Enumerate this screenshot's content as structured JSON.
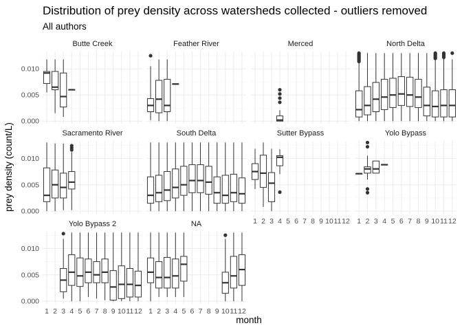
{
  "chart_data": {
    "type": "boxplot",
    "facet": "watershed",
    "title": "Distribution of prey density across watersheds collected - outliers removed",
    "subtitle": "All authors",
    "xlabel": "month",
    "ylabel": "prey density (count/L)",
    "x_ticks": [
      "1",
      "2",
      "3",
      "4",
      "5",
      "6",
      "7",
      "8",
      "9",
      "10",
      "11",
      "12"
    ],
    "y_ticks": [
      "0.000",
      "0.005",
      "0.010"
    ],
    "ylim": [
      -0.0005,
      0.0133
    ],
    "grid": true,
    "panels": [
      {
        "name": "Butte Creek",
        "boxes": [
          {
            "month": 1,
            "min": 0.0055,
            "q1": 0.0072,
            "median": 0.0092,
            "q3": 0.0095,
            "max": 0.0118,
            "outliers": []
          },
          {
            "month": 2,
            "min": 0.0015,
            "q1": 0.006,
            "median": 0.0065,
            "q3": 0.0095,
            "max": 0.0118,
            "outliers": []
          },
          {
            "month": 3,
            "min": 0.0008,
            "q1": 0.0027,
            "median": 0.0047,
            "q3": 0.0092,
            "max": 0.0118,
            "outliers": []
          },
          {
            "month": 4,
            "min": 0.006,
            "q1": 0.006,
            "median": 0.006,
            "q3": 0.006,
            "max": 0.006,
            "outliers": []
          }
        ]
      },
      {
        "name": "Feather River",
        "boxes": [
          {
            "month": 1,
            "min": 0.0002,
            "q1": 0.0018,
            "median": 0.003,
            "q3": 0.0043,
            "max": 0.0105,
            "outliers": [
              0.0125
            ]
          },
          {
            "month": 2,
            "min": 0.0,
            "q1": 0.0016,
            "median": 0.0042,
            "q3": 0.0078,
            "max": 0.0118,
            "outliers": []
          },
          {
            "month": 3,
            "min": 0.0,
            "q1": 0.0018,
            "median": 0.003,
            "q3": 0.008,
            "max": 0.0118,
            "outliers": []
          },
          {
            "month": 4,
            "min": 0.0071,
            "q1": 0.0071,
            "median": 0.0071,
            "q3": 0.0071,
            "max": 0.0071,
            "outliers": []
          }
        ]
      },
      {
        "name": "Merced",
        "boxes": [
          {
            "month": 4,
            "min": 0.0,
            "q1": 0.0,
            "median": 0.0002,
            "q3": 0.001,
            "max": 0.0021,
            "outliers": [
              0.0036,
              0.0044,
              0.0052,
              0.006
            ]
          }
        ]
      },
      {
        "name": "North Delta",
        "boxes": [
          {
            "month": 1,
            "min": 0.0,
            "q1": 0.0008,
            "median": 0.0022,
            "q3": 0.0058,
            "max": 0.0112,
            "outliers": [
              0.0114,
              0.0116,
              0.0118,
              0.012,
              0.0122,
              0.0124,
              0.0126,
              0.0128,
              0.013
            ]
          },
          {
            "month": 2,
            "min": 0.0,
            "q1": 0.0012,
            "median": 0.003,
            "q3": 0.0066,
            "max": 0.013,
            "outliers": []
          },
          {
            "month": 3,
            "min": 0.0,
            "q1": 0.0018,
            "median": 0.0042,
            "q3": 0.0074,
            "max": 0.013,
            "outliers": []
          },
          {
            "month": 4,
            "min": 0.0,
            "q1": 0.0022,
            "median": 0.0046,
            "q3": 0.008,
            "max": 0.013,
            "outliers": []
          },
          {
            "month": 5,
            "min": 0.0,
            "q1": 0.0026,
            "median": 0.005,
            "q3": 0.0082,
            "max": 0.013,
            "outliers": []
          },
          {
            "month": 6,
            "min": 0.0,
            "q1": 0.003,
            "median": 0.0052,
            "q3": 0.0085,
            "max": 0.013,
            "outliers": []
          },
          {
            "month": 7,
            "min": 0.0,
            "q1": 0.0028,
            "median": 0.005,
            "q3": 0.0084,
            "max": 0.013,
            "outliers": []
          },
          {
            "month": 8,
            "min": 0.0,
            "q1": 0.0026,
            "median": 0.0046,
            "q3": 0.008,
            "max": 0.013,
            "outliers": []
          },
          {
            "month": 9,
            "min": 0.0,
            "q1": 0.001,
            "median": 0.003,
            "q3": 0.0065,
            "max": 0.013,
            "outliers": []
          },
          {
            "month": 10,
            "min": 0.0,
            "q1": 0.0008,
            "median": 0.0028,
            "q3": 0.0058,
            "max": 0.0118,
            "outliers": [
              0.012,
              0.0122,
              0.0124,
              0.0126,
              0.0128,
              0.013
            ]
          },
          {
            "month": 11,
            "min": 0.0,
            "q1": 0.0008,
            "median": 0.003,
            "q3": 0.006,
            "max": 0.012,
            "outliers": [
              0.0122,
              0.0124,
              0.0126,
              0.0128,
              0.013
            ]
          },
          {
            "month": 12,
            "min": 0.0,
            "q1": 0.0008,
            "median": 0.003,
            "q3": 0.006,
            "max": 0.0118,
            "outliers": [
              0.013
            ]
          }
        ]
      },
      {
        "name": "Sacramento River",
        "boxes": [
          {
            "month": 1,
            "min": 0.0,
            "q1": 0.0018,
            "median": 0.003,
            "q3": 0.0082,
            "max": 0.013,
            "outliers": []
          },
          {
            "month": 2,
            "min": 0.0,
            "q1": 0.0025,
            "median": 0.005,
            "q3": 0.0078,
            "max": 0.0128,
            "outliers": []
          },
          {
            "month": 3,
            "min": 0.0002,
            "q1": 0.0025,
            "median": 0.0045,
            "q3": 0.0072,
            "max": 0.0128,
            "outliers": []
          },
          {
            "month": 4,
            "min": 0.0002,
            "q1": 0.0042,
            "median": 0.0055,
            "q3": 0.0075,
            "max": 0.0112,
            "outliers": [
              0.0116,
              0.012,
              0.0124
            ]
          }
        ]
      },
      {
        "name": "South Delta",
        "boxes": [
          {
            "month": 1,
            "min": 0.0,
            "q1": 0.0015,
            "median": 0.003,
            "q3": 0.0065,
            "max": 0.013,
            "outliers": []
          },
          {
            "month": 2,
            "min": 0.0,
            "q1": 0.0018,
            "median": 0.0035,
            "q3": 0.0068,
            "max": 0.013,
            "outliers": []
          },
          {
            "month": 3,
            "min": 0.0,
            "q1": 0.002,
            "median": 0.004,
            "q3": 0.0075,
            "max": 0.013,
            "outliers": []
          },
          {
            "month": 4,
            "min": 0.0,
            "q1": 0.0025,
            "median": 0.0045,
            "q3": 0.008,
            "max": 0.013,
            "outliers": []
          },
          {
            "month": 5,
            "min": 0.0,
            "q1": 0.003,
            "median": 0.005,
            "q3": 0.0085,
            "max": 0.013,
            "outliers": []
          },
          {
            "month": 6,
            "min": 0.0,
            "q1": 0.0035,
            "median": 0.0058,
            "q3": 0.0088,
            "max": 0.013,
            "outliers": []
          },
          {
            "month": 7,
            "min": 0.0,
            "q1": 0.0035,
            "median": 0.0058,
            "q3": 0.0088,
            "max": 0.013,
            "outliers": []
          },
          {
            "month": 8,
            "min": 0.0,
            "q1": 0.0032,
            "median": 0.0055,
            "q3": 0.0085,
            "max": 0.013,
            "outliers": []
          },
          {
            "month": 9,
            "min": 0.0,
            "q1": 0.0015,
            "median": 0.0035,
            "q3": 0.0065,
            "max": 0.013,
            "outliers": []
          },
          {
            "month": 10,
            "min": 0.0,
            "q1": 0.0015,
            "median": 0.003,
            "q3": 0.0068,
            "max": 0.013,
            "outliers": []
          },
          {
            "month": 11,
            "min": 0.0,
            "q1": 0.0018,
            "median": 0.0035,
            "q3": 0.007,
            "max": 0.013,
            "outliers": []
          },
          {
            "month": 12,
            "min": 0.0,
            "q1": 0.0015,
            "median": 0.0033,
            "q3": 0.0063,
            "max": 0.013,
            "outliers": []
          }
        ]
      },
      {
        "name": "Sutter Bypass",
        "boxes": [
          {
            "month": 1,
            "min": 0.0042,
            "q1": 0.006,
            "median": 0.0075,
            "q3": 0.009,
            "max": 0.0118,
            "outliers": []
          },
          {
            "month": 2,
            "min": 0.0008,
            "q1": 0.0045,
            "median": 0.0072,
            "q3": 0.0106,
            "max": 0.013,
            "outliers": []
          },
          {
            "month": 3,
            "min": 0.0,
            "q1": 0.0018,
            "median": 0.0053,
            "q3": 0.0073,
            "max": 0.0118,
            "outliers": []
          },
          {
            "month": 4,
            "min": 0.007,
            "q1": 0.0086,
            "median": 0.0102,
            "q3": 0.0105,
            "max": 0.0117,
            "outliers": [
              0.0036
            ]
          }
        ]
      },
      {
        "name": "Yolo Bypass",
        "boxes": [
          {
            "month": 1,
            "min": 0.0071,
            "q1": 0.0071,
            "median": 0.0071,
            "q3": 0.0071,
            "max": 0.0071,
            "outliers": []
          },
          {
            "month": 2,
            "min": 0.006,
            "q1": 0.0072,
            "median": 0.008,
            "q3": 0.0084,
            "max": 0.0105,
            "outliers": [
              0.0035,
              0.0042,
              0.0122,
              0.013
            ]
          },
          {
            "month": 3,
            "min": 0.0072,
            "q1": 0.0072,
            "median": 0.008,
            "q3": 0.0095,
            "max": 0.0095,
            "outliers": []
          },
          {
            "month": 4,
            "min": 0.0088,
            "q1": 0.0088,
            "median": 0.0088,
            "q3": 0.0088,
            "max": 0.0088,
            "outliers": []
          }
        ]
      },
      {
        "name": "Yolo Bypass 2",
        "boxes": [
          {
            "month": 3,
            "min": 0.0005,
            "q1": 0.0018,
            "median": 0.004,
            "q3": 0.0062,
            "max": 0.0118,
            "outliers": [
              0.0128
            ]
          },
          {
            "month": 4,
            "min": 0.0,
            "q1": 0.003,
            "median": 0.0055,
            "q3": 0.0088,
            "max": 0.013,
            "outliers": []
          },
          {
            "month": 5,
            "min": 0.0,
            "q1": 0.0028,
            "median": 0.0048,
            "q3": 0.0082,
            "max": 0.013,
            "outliers": []
          },
          {
            "month": 6,
            "min": 0.0008,
            "q1": 0.0035,
            "median": 0.0055,
            "q3": 0.008,
            "max": 0.013,
            "outliers": []
          },
          {
            "month": 7,
            "min": 0.0005,
            "q1": 0.0035,
            "median": 0.005,
            "q3": 0.0075,
            "max": 0.013,
            "outliers": []
          },
          {
            "month": 8,
            "min": 0.0002,
            "q1": 0.0035,
            "median": 0.0055,
            "q3": 0.008,
            "max": 0.013,
            "outliers": []
          },
          {
            "month": 9,
            "min": 0.0,
            "q1": 0.0002,
            "median": 0.0027,
            "q3": 0.0058,
            "max": 0.013,
            "outliers": []
          },
          {
            "month": 10,
            "min": 0.0,
            "q1": 0.0005,
            "median": 0.0032,
            "q3": 0.0067,
            "max": 0.013,
            "outliers": []
          },
          {
            "month": 11,
            "min": 0.0,
            "q1": 0.0008,
            "median": 0.0032,
            "q3": 0.0062,
            "max": 0.013,
            "outliers": []
          },
          {
            "month": 12,
            "min": 0.0,
            "q1": 0.0008,
            "median": 0.003,
            "q3": 0.0057,
            "max": 0.013,
            "outliers": []
          }
        ]
      },
      {
        "name": "NA",
        "boxes": [
          {
            "month": 1,
            "min": 0.0,
            "q1": 0.0035,
            "median": 0.0055,
            "q3": 0.0082,
            "max": 0.013,
            "outliers": []
          },
          {
            "month": 2,
            "min": 0.0008,
            "q1": 0.0025,
            "median": 0.0045,
            "q3": 0.0075,
            "max": 0.013,
            "outliers": []
          },
          {
            "month": 3,
            "min": 0.0008,
            "q1": 0.0025,
            "median": 0.0045,
            "q3": 0.0083,
            "max": 0.013,
            "outliers": []
          },
          {
            "month": 4,
            "min": 0.0008,
            "q1": 0.0025,
            "median": 0.0048,
            "q3": 0.008,
            "max": 0.013,
            "outliers": []
          },
          {
            "month": 5,
            "min": 0.0008,
            "q1": 0.0038,
            "median": 0.007,
            "q3": 0.0085,
            "max": 0.013,
            "outliers": []
          },
          {
            "month": 10,
            "min": 0.0,
            "q1": 0.0015,
            "median": 0.0035,
            "q3": 0.0055,
            "max": 0.0118,
            "outliers": [
              0.0125
            ]
          },
          {
            "month": 11,
            "min": 0.0,
            "q1": 0.0025,
            "median": 0.0048,
            "q3": 0.0085,
            "max": 0.013,
            "outliers": []
          },
          {
            "month": 12,
            "min": 0.0,
            "q1": 0.003,
            "median": 0.006,
            "q3": 0.0088,
            "max": 0.013,
            "outliers": []
          }
        ]
      }
    ]
  }
}
